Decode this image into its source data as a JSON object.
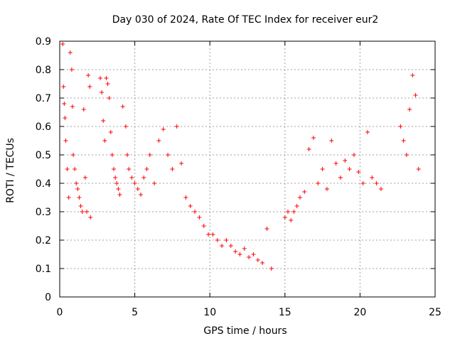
{
  "chart_data": {
    "type": "scatter",
    "title": "Day 030 of 2024, Rate Of TEC Index for receiver eur2",
    "xlabel": "GPS time / hours",
    "ylabel": "ROTI / TECUs",
    "xlim": [
      0,
      25
    ],
    "ylim": [
      0,
      0.9
    ],
    "xticks": [
      "0",
      "5",
      "10",
      "15",
      "20",
      "25"
    ],
    "yticks": [
      "0",
      "0.1",
      "0.2",
      "0.3",
      "0.4",
      "0.5",
      "0.6",
      "0.7",
      "0.8",
      "0.9"
    ],
    "grid": true,
    "marker": "+",
    "color": "#ff0000",
    "series": [
      {
        "x": [
          0.2,
          0.25,
          0.3,
          0.35,
          0.4,
          0.5,
          0.6,
          0.7,
          0.8,
          0.85,
          0.9,
          1.0,
          1.1,
          1.2,
          1.3,
          1.4,
          1.5,
          1.6,
          1.7,
          1.8,
          1.9,
          2.0,
          2.05,
          2.7,
          2.8,
          2.9,
          3.0,
          3.1,
          3.2,
          3.3,
          3.4,
          3.5,
          3.6,
          3.7,
          3.8,
          3.9,
          4.0,
          4.2,
          4.4,
          4.5,
          4.6,
          4.8,
          5.0,
          5.2,
          5.4,
          5.6,
          5.8,
          6.0,
          6.3,
          6.6,
          6.9,
          7.2,
          7.5,
          7.8,
          8.1,
          8.4,
          8.7,
          9.0,
          9.3,
          9.6,
          9.9,
          10.2,
          10.5,
          10.8,
          11.1,
          11.4,
          11.7,
          12.0,
          12.3,
          12.6,
          12.9,
          13.2,
          13.5,
          13.8,
          14.1,
          15.0,
          15.2,
          15.4,
          15.6,
          15.8,
          16.0,
          16.3,
          16.6,
          16.9,
          17.2,
          17.5,
          17.8,
          18.1,
          18.4,
          18.7,
          19.0,
          19.3,
          19.6,
          19.9,
          20.2,
          20.5,
          20.8,
          21.1,
          21.4,
          22.7,
          22.9,
          23.1,
          23.3,
          23.5,
          23.7,
          23.9
        ],
        "y": [
          0.89,
          0.74,
          0.68,
          0.63,
          0.55,
          0.45,
          0.35,
          0.86,
          0.8,
          0.67,
          0.5,
          0.45,
          0.4,
          0.38,
          0.35,
          0.32,
          0.3,
          0.66,
          0.42,
          0.3,
          0.78,
          0.74,
          0.28,
          0.77,
          0.72,
          0.62,
          0.55,
          0.77,
          0.75,
          0.7,
          0.58,
          0.5,
          0.45,
          0.42,
          0.4,
          0.38,
          0.36,
          0.67,
          0.6,
          0.5,
          0.45,
          0.42,
          0.4,
          0.38,
          0.36,
          0.42,
          0.45,
          0.5,
          0.4,
          0.55,
          0.59,
          0.5,
          0.45,
          0.6,
          0.47,
          0.35,
          0.32,
          0.3,
          0.28,
          0.25,
          0.22,
          0.22,
          0.2,
          0.18,
          0.2,
          0.18,
          0.16,
          0.15,
          0.17,
          0.14,
          0.15,
          0.13,
          0.12,
          0.24,
          0.1,
          0.28,
          0.3,
          0.27,
          0.3,
          0.32,
          0.35,
          0.37,
          0.52,
          0.56,
          0.4,
          0.45,
          0.38,
          0.55,
          0.47,
          0.42,
          0.48,
          0.45,
          0.5,
          0.44,
          0.4,
          0.58,
          0.42,
          0.4,
          0.38,
          0.6,
          0.55,
          0.5,
          0.66,
          0.78,
          0.71,
          0.45
        ]
      }
    ]
  }
}
